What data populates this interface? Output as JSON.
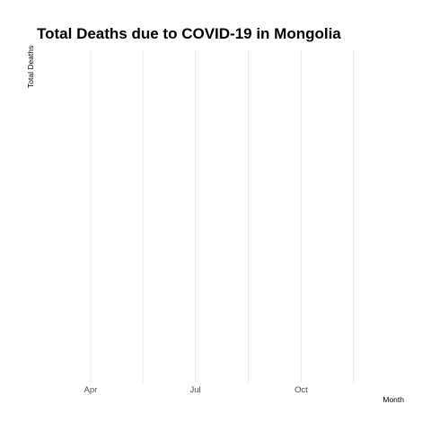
{
  "chart_data": {
    "type": "line",
    "title": "Total Deaths due to COVID-19 in Mongolia",
    "xlabel": "Month",
    "ylabel": "Total Deaths",
    "x_ticks": [
      "Apr",
      "Jul",
      "Oct"
    ],
    "xlim": [
      "2020-02-15",
      "2020-12-31"
    ],
    "series": [
      {
        "values": []
      }
    ],
    "grid": true,
    "legend": "none"
  }
}
